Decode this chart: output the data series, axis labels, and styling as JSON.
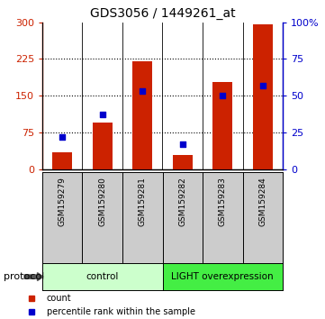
{
  "title": "GDS3056 / 1449261_at",
  "samples": [
    "GSM159279",
    "GSM159280",
    "GSM159281",
    "GSM159282",
    "GSM159283",
    "GSM159284"
  ],
  "counts": [
    35,
    95,
    220,
    28,
    178,
    295
  ],
  "percentile_ranks": [
    22,
    37,
    53,
    17,
    50,
    57
  ],
  "left_ylim": [
    0,
    300
  ],
  "right_ylim": [
    0,
    100
  ],
  "left_yticks": [
    0,
    75,
    150,
    225,
    300
  ],
  "right_yticks": [
    0,
    25,
    50,
    75,
    100
  ],
  "right_yticklabels": [
    "0",
    "25",
    "50",
    "75",
    "100%"
  ],
  "left_color": "#cc2200",
  "right_color": "#0000cc",
  "bar_color": "#cc2200",
  "dot_color": "#0000cc",
  "gridline_yticks": [
    75,
    150,
    225
  ],
  "groups": [
    {
      "label": "control",
      "indices": [
        0,
        1,
        2
      ],
      "color": "#ccffcc"
    },
    {
      "label": "LIGHT overexpression",
      "indices": [
        3,
        4,
        5
      ],
      "color": "#44ee44"
    }
  ],
  "protocol_label": "protocol",
  "legend_items": [
    {
      "label": "count",
      "color": "#cc2200"
    },
    {
      "label": "percentile rank within the sample",
      "color": "#0000cc"
    }
  ],
  "bg_color": "#ffffff",
  "bar_width": 0.5,
  "sample_bg_color": "#cccccc",
  "separator_color": "#000000"
}
